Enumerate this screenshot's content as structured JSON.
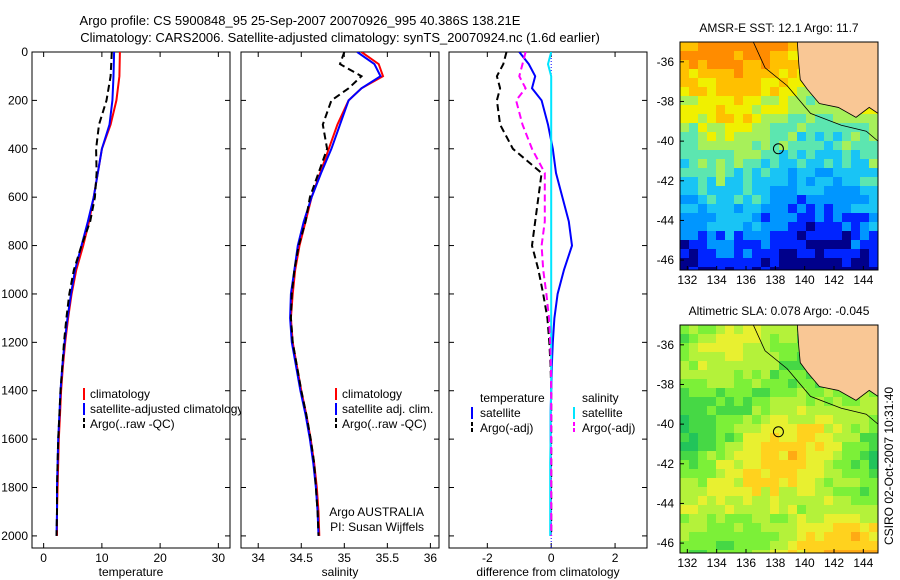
{
  "header": {
    "line1": "Argo profile: CS 5900848_95 25-Sep-2007 20070926_995 40.386S 138.21E",
    "line2": "Climatology: CARS2006. Satellite-adjusted climatology: synTS_20070924.nc (1.6d earlier)"
  },
  "colors": {
    "climatology": "#ff0000",
    "satellite": "#0000ff",
    "argo": "#000000",
    "sat_diff": "#00e5ff",
    "argo_adj": "#ff00ff",
    "land": "#f9c795"
  },
  "chart_data": [
    {
      "type": "line",
      "id": "temperature",
      "xlabel": "temperature",
      "ylabel": "",
      "xlim": [
        -2,
        32
      ],
      "ylim": [
        2050,
        0
      ],
      "xticks": [
        "0",
        "10",
        "20",
        "30"
      ],
      "yticks": [
        "0",
        "200",
        "400",
        "600",
        "800",
        "1000",
        "1200",
        "1400",
        "1600",
        "1800",
        "2000"
      ],
      "depth": [
        0,
        100,
        200,
        300,
        400,
        500,
        600,
        700,
        800,
        900,
        1000,
        1100,
        1200,
        1300,
        1400,
        1500,
        1600,
        1700,
        1800,
        1900,
        2000
      ],
      "series": [
        {
          "name": "climatology",
          "style": "solid",
          "color": "#ff0000",
          "values": [
            13.1,
            13.0,
            12.5,
            11.5,
            10.0,
            9.3,
            8.6,
            7.8,
            6.8,
            5.6,
            4.8,
            4.2,
            3.7,
            3.3,
            3.0,
            2.8,
            2.6,
            2.5,
            2.4,
            2.3,
            2.3
          ]
        },
        {
          "name": "satellite-adjusted climatology",
          "style": "solid",
          "color": "#0000ff",
          "values": [
            12.1,
            12.0,
            11.8,
            11.3,
            10.0,
            9.3,
            8.6,
            7.6,
            6.5,
            5.4,
            4.7,
            4.1,
            3.6,
            3.2,
            2.9,
            2.7,
            2.5,
            2.4,
            2.3,
            2.3,
            2.2
          ]
        },
        {
          "name": "Argo(..raw -QC)",
          "style": "dashed",
          "color": "#000000",
          "values": [
            11.7,
            11.5,
            10.8,
            9.5,
            9.0,
            9.1,
            8.8,
            8.0,
            6.5,
            5.2,
            4.4,
            3.9,
            3.5,
            3.2,
            2.9,
            2.7,
            2.5,
            2.4,
            2.3,
            2.3,
            2.2
          ]
        }
      ],
      "legend_labels": [
        "climatology",
        "satellite-adjusted climatology",
        "Argo(..raw -QC)"
      ]
    },
    {
      "type": "line",
      "id": "salinity",
      "xlabel": "salinity",
      "xlim": [
        33.8,
        36.1
      ],
      "ylim": [
        2050,
        0
      ],
      "xticks": [
        "34",
        "34.5",
        "35",
        "35.5",
        "36"
      ],
      "depth": [
        0,
        50,
        100,
        150,
        200,
        300,
        400,
        500,
        600,
        700,
        800,
        900,
        1000,
        1100,
        1200,
        1300,
        1400,
        1500,
        1600,
        1700,
        1800,
        1900,
        2000
      ],
      "series": [
        {
          "name": "climatology",
          "style": "solid",
          "color": "#ff0000",
          "values": [
            35.2,
            35.4,
            35.45,
            35.2,
            35.05,
            34.92,
            34.82,
            34.72,
            34.62,
            34.55,
            34.48,
            34.43,
            34.4,
            34.38,
            34.4,
            34.45,
            34.5,
            34.56,
            34.61,
            34.65,
            34.68,
            34.7,
            34.71
          ]
        },
        {
          "name": "satellite adj. clim.",
          "style": "solid",
          "color": "#0000ff",
          "values": [
            35.15,
            35.35,
            35.42,
            35.2,
            35.05,
            34.95,
            34.85,
            34.73,
            34.62,
            34.53,
            34.46,
            34.42,
            34.38,
            34.37,
            34.39,
            34.44,
            34.49,
            34.55,
            34.6,
            34.64,
            34.67,
            34.69,
            34.7
          ]
        },
        {
          "name": "Argo(..raw -QC)",
          "style": "dashed",
          "color": "#000000",
          "values": [
            35.0,
            34.95,
            35.2,
            35.05,
            34.85,
            34.75,
            34.8,
            34.7,
            34.6,
            34.55,
            34.47,
            34.42,
            34.39,
            34.38,
            34.4,
            34.45,
            34.5,
            34.56,
            34.61,
            34.65,
            34.67,
            34.69,
            34.7
          ]
        }
      ],
      "legend_labels": [
        "climatology",
        "satellite adj. clim.",
        "Argo(..raw -QC)"
      ],
      "annotation": [
        "Argo AUSTRALIA",
        "PI: Susan Wijffels"
      ]
    },
    {
      "type": "line",
      "id": "difference",
      "xlabel": "difference from climatology",
      "xlim": [
        -3.2,
        3.0
      ],
      "ylim": [
        2050,
        0
      ],
      "xticks": [
        "-2",
        "0",
        "2"
      ],
      "depth": [
        0,
        50,
        100,
        150,
        200,
        300,
        400,
        500,
        600,
        700,
        800,
        900,
        1000,
        1100,
        1200,
        1300,
        1400,
        1500,
        1600,
        1700,
        1800,
        1900,
        2000
      ],
      "series": [
        {
          "name": "temperature satellite",
          "style": "solid",
          "color": "#0000ff",
          "values": [
            -1.0,
            -0.7,
            -0.5,
            -0.6,
            -0.3,
            -0.1,
            0.05,
            0.15,
            0.35,
            0.55,
            0.65,
            0.4,
            0.2,
            0.1,
            0.05,
            0.02,
            0.0,
            -0.02,
            -0.02,
            -0.02,
            -0.02,
            -0.02,
            -0.02
          ]
        },
        {
          "name": "temperature Argo(-adj)",
          "style": "dashed",
          "color": "#000000",
          "values": [
            -1.4,
            -1.5,
            -1.7,
            -1.6,
            -1.7,
            -1.6,
            -1.2,
            -0.3,
            -0.4,
            -0.5,
            -0.6,
            -0.4,
            -0.25,
            -0.12,
            -0.06,
            -0.02,
            0.0,
            0.0,
            0.0,
            0.0,
            0.0,
            0.0,
            0.0
          ]
        },
        {
          "name": "salinity satellite",
          "style": "solid",
          "color": "#00e5ff",
          "values": [
            0.0,
            -0.1,
            0.0,
            0.0,
            0.0,
            0.0,
            0.0,
            0.0,
            0.0,
            0.0,
            0.0,
            0.0,
            0.0,
            0.0,
            0.0,
            0.0,
            0.0,
            -0.02,
            -0.02,
            -0.03,
            -0.03,
            -0.03,
            -0.03
          ]
        },
        {
          "name": "salinity Argo(-adj)",
          "style": "dashed",
          "color": "#ff00ff",
          "values": [
            -0.8,
            -0.9,
            -1.0,
            -0.8,
            -1.1,
            -0.9,
            -0.6,
            -0.2,
            -0.2,
            -0.2,
            -0.3,
            -0.25,
            -0.15,
            -0.07,
            -0.03,
            -0.01,
            0.0,
            0.0,
            0.0,
            0.0,
            0.0,
            0.0,
            0.0
          ]
        }
      ],
      "legend": {
        "temperature": {
          "title": "temperature",
          "items": [
            "satellite",
            "Argo(-adj)"
          ]
        },
        "salinity": {
          "title": "salinity",
          "items": [
            "satellite",
            "Argo(-adj)"
          ]
        }
      }
    },
    {
      "type": "heatmap",
      "id": "sst",
      "title": "AMSR-E SST: 12.1 Argo: 11.7",
      "xlim": [
        131.5,
        145
      ],
      "ylim": [
        -46.5,
        -35
      ],
      "xticks": [
        "132",
        "134",
        "136",
        "138",
        "140",
        "142",
        "144"
      ],
      "yticks": [
        "-36",
        "-38",
        "-40",
        "-42",
        "-44",
        "-46"
      ],
      "marker": {
        "lon": 138.21,
        "lat": -40.386
      },
      "palette": [
        "#00008b",
        "#0024ff",
        "#0096ff",
        "#19c4f5",
        "#5ce6b0",
        "#a7f05a",
        "#f0f000",
        "#ffc000",
        "#ff8c00"
      ]
    },
    {
      "type": "heatmap",
      "id": "sla",
      "title": "Altimetric SLA: 0.078 Argo: -0.045",
      "xlim": [
        131.5,
        145
      ],
      "ylim": [
        -46.5,
        -35
      ],
      "xticks": [
        "132",
        "134",
        "136",
        "138",
        "140",
        "142",
        "144"
      ],
      "yticks": [
        "-36",
        "-38",
        "-40",
        "-42",
        "-44",
        "-46"
      ],
      "marker": {
        "lon": 138.21,
        "lat": -40.386
      },
      "palette": [
        "#00b050",
        "#22c45a",
        "#46d845",
        "#7cf038",
        "#b4f23a",
        "#e8f030",
        "#ffd21e",
        "#ffaa14"
      ]
    }
  ],
  "footer": {
    "stamp": "CSIRO 02-Oct-2007 10:31:40"
  }
}
